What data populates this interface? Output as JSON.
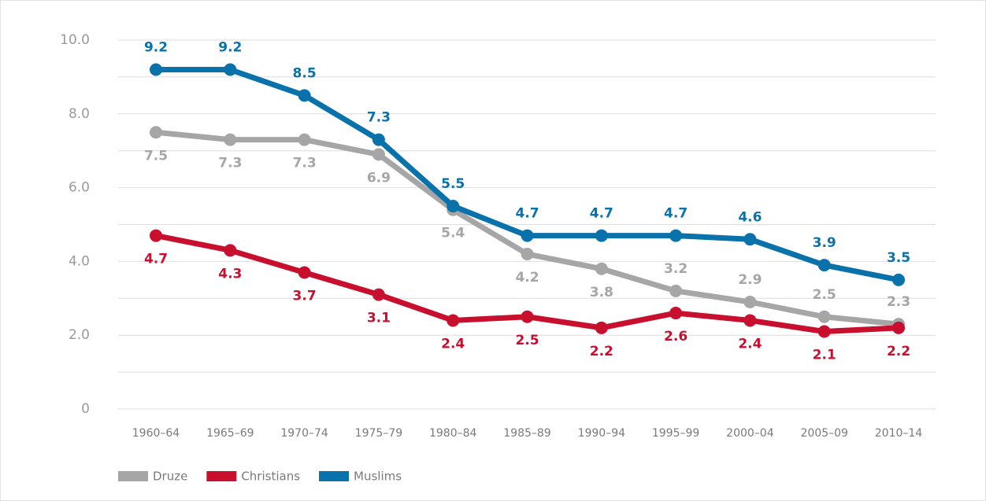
{
  "chart_data": {
    "type": "line",
    "categories": [
      "1960–64",
      "1965–69",
      "1970–74",
      "1975–79",
      "1980–84",
      "1985–89",
      "1990–94",
      "1995–99",
      "2000–04",
      "2005–09",
      "2010–14"
    ],
    "series": [
      {
        "name": "Druze",
        "color": "#a6a6a6",
        "values": [
          7.5,
          7.3,
          7.3,
          6.9,
          5.4,
          4.2,
          3.8,
          3.2,
          2.9,
          2.5,
          2.3
        ]
      },
      {
        "name": "Christians",
        "color": "#c8102e",
        "values": [
          4.7,
          4.3,
          3.7,
          3.1,
          2.4,
          2.5,
          2.2,
          2.6,
          2.4,
          2.1,
          2.2
        ]
      },
      {
        "name": "Muslims",
        "color": "#0a72aa",
        "values": [
          9.2,
          9.2,
          8.5,
          7.3,
          5.5,
          4.7,
          4.7,
          4.7,
          4.6,
          3.9,
          3.5
        ]
      }
    ],
    "ylim": [
      0,
      10
    ],
    "yticks": [
      0,
      {
        "value": 2,
        "label": "2.0"
      },
      {
        "value": 4,
        "label": "4.0"
      },
      {
        "value": 6,
        "label": "6.0"
      },
      {
        "value": 8,
        "label": "8.0"
      },
      {
        "value": 10,
        "label": "10.0"
      }
    ],
    "minor_yticks": [
      1,
      3,
      5,
      7,
      9
    ],
    "grid": true,
    "legend": "bottom-left"
  }
}
